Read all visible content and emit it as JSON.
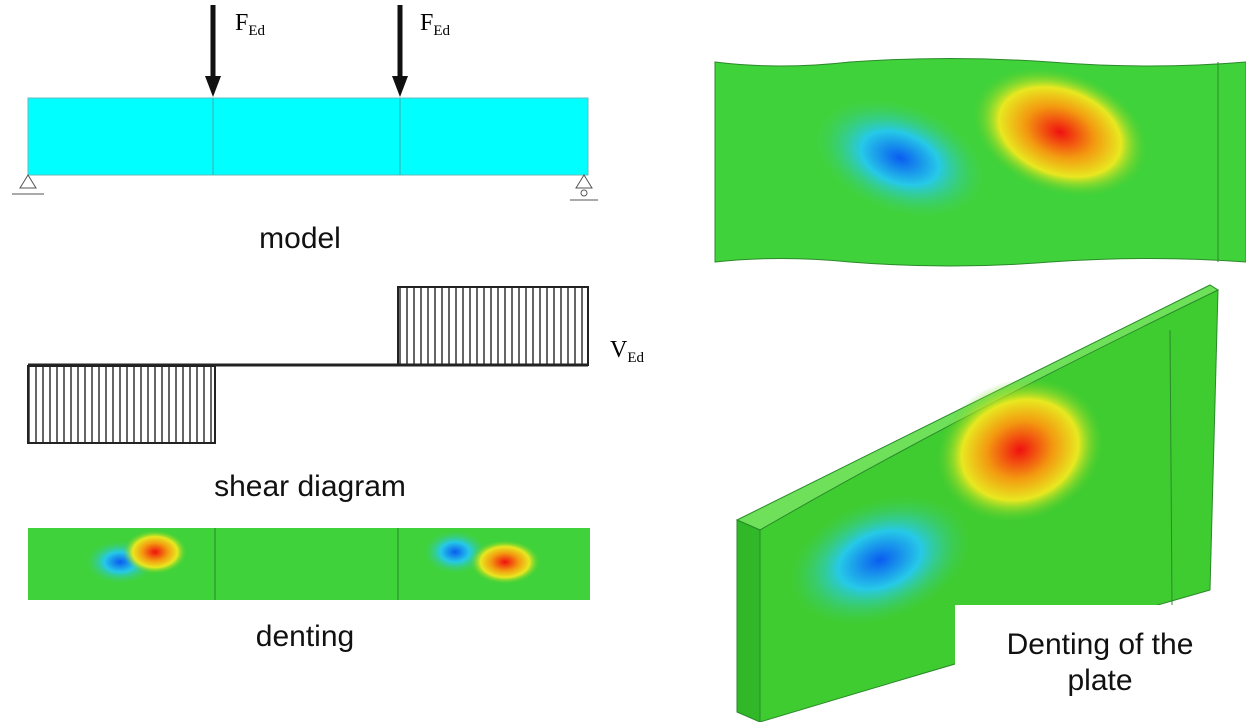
{
  "model": {
    "forces": [
      {
        "main": "F",
        "sub": "Ed"
      },
      {
        "main": "F",
        "sub": "Ed"
      }
    ],
    "caption": "model"
  },
  "shear": {
    "label": {
      "main": "V",
      "sub": "Ed"
    },
    "caption": "shear diagram"
  },
  "denting": {
    "caption": "denting"
  },
  "plate": {
    "caption": "Denting of the plate"
  }
}
